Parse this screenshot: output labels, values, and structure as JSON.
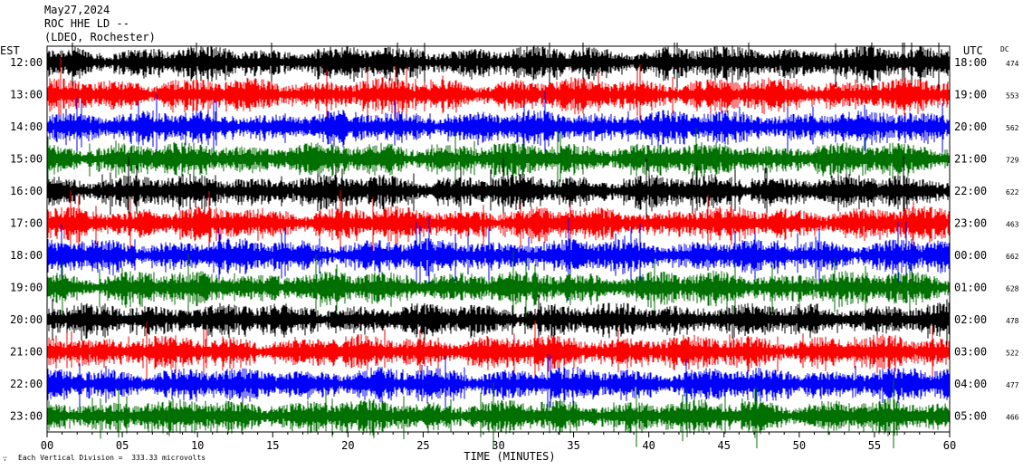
{
  "header": {
    "date": "May27,2024",
    "station": "ROC HHE LD --",
    "network": "(LDEO, Rochester)"
  },
  "footer": {
    "mark": "∵",
    "scale_note": "Each Vertical Division =  333.33 microvolts"
  },
  "chart_data": {
    "type": "line",
    "title": "ROC HHE LD --",
    "xlabel": "TIME (MINUTES)",
    "left_axis_label": "EST",
    "right_axis_label": "UTC",
    "dc_label": "DC",
    "xlim": [
      0,
      60
    ],
    "x_ticks": [
      "00",
      "05",
      "10",
      "15",
      "20",
      "25",
      "30",
      "35",
      "40",
      "45",
      "50",
      "55",
      "60"
    ],
    "trace_colors": [
      "#000000",
      "#ff0000",
      "#0000ff",
      "#007000"
    ],
    "grid": false,
    "rows": [
      {
        "est": "12:00",
        "utc": "18:00",
        "dc": "474"
      },
      {
        "est": "13:00",
        "utc": "19:00",
        "dc": "553"
      },
      {
        "est": "14:00",
        "utc": "20:00",
        "dc": "562"
      },
      {
        "est": "15:00",
        "utc": "21:00",
        "dc": "729"
      },
      {
        "est": "16:00",
        "utc": "22:00",
        "dc": "622"
      },
      {
        "est": "17:00",
        "utc": "23:00",
        "dc": "463"
      },
      {
        "est": "18:00",
        "utc": "00:00",
        "dc": "662"
      },
      {
        "est": "19:00",
        "utc": "01:00",
        "dc": "628"
      },
      {
        "est": "20:00",
        "utc": "02:00",
        "dc": "478"
      },
      {
        "est": "21:00",
        "utc": "03:00",
        "dc": "522"
      },
      {
        "est": "22:00",
        "utc": "04:00",
        "dc": "477"
      },
      {
        "est": "23:00",
        "utc": "05:00",
        "dc": "466"
      }
    ]
  }
}
